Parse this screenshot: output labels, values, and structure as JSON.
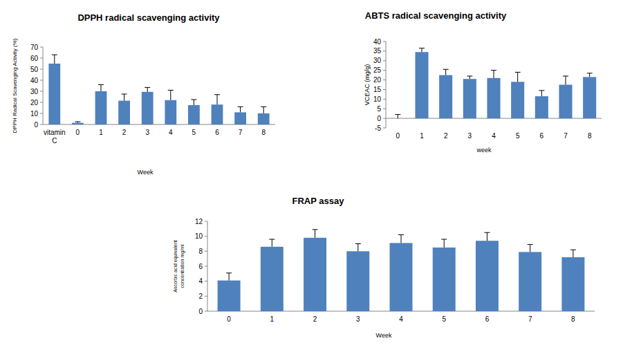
{
  "chart_data": [
    {
      "type": "bar",
      "title": "DPPH radical scavenging activity",
      "x_label": "Week",
      "y_label": "DPPH Radical Scavenging Activity (%)",
      "categories": [
        "vitamin C",
        "0",
        "1",
        "2",
        "3",
        "4",
        "5",
        "6",
        "7",
        "8"
      ],
      "values": [
        55,
        1.5,
        30,
        21.5,
        29.5,
        22,
        17.5,
        18,
        11,
        10
      ],
      "errors": [
        8,
        1,
        6,
        6,
        4,
        9,
        5,
        9,
        5,
        6
      ],
      "color": "#4f81bd",
      "ylim": [
        0,
        70
      ],
      "yticks": [
        0,
        10,
        20,
        30,
        40,
        50,
        60,
        70
      ]
    },
    {
      "type": "bar",
      "title": "ABTS radical scavenging activity",
      "x_label": "week",
      "y_label": "VCEAC (mg/g)",
      "categories": [
        "0",
        "1",
        "2",
        "3",
        "4",
        "5",
        "6",
        "7",
        "8"
      ],
      "values": [
        0,
        34.5,
        22.5,
        20.5,
        21,
        19,
        11.5,
        17.5,
        21.5
      ],
      "errors": [
        2,
        2,
        3,
        1.5,
        4,
        5,
        3,
        4.5,
        2
      ],
      "color": "#4f81bd",
      "ylim": [
        -5,
        40
      ],
      "yticks": [
        -5,
        0,
        5,
        10,
        15,
        20,
        25,
        30,
        35,
        40
      ]
    },
    {
      "type": "bar",
      "title": "FRAP assay",
      "x_label": "Week",
      "y_label": "Ascorbic acid equivalent concentration mg/ml",
      "categories": [
        "0",
        "1",
        "2",
        "3",
        "4",
        "5",
        "6",
        "7",
        "8"
      ],
      "values": [
        4.1,
        8.6,
        9.8,
        8.0,
        9.1,
        8.5,
        9.4,
        7.9,
        7.2
      ],
      "errors": [
        1,
        1,
        1.1,
        1,
        1.1,
        1.1,
        1.1,
        1,
        1
      ],
      "color": "#4f81bd",
      "ylim": [
        0,
        12
      ],
      "yticks": [
        0,
        2,
        4,
        6,
        8,
        10,
        12
      ]
    }
  ]
}
